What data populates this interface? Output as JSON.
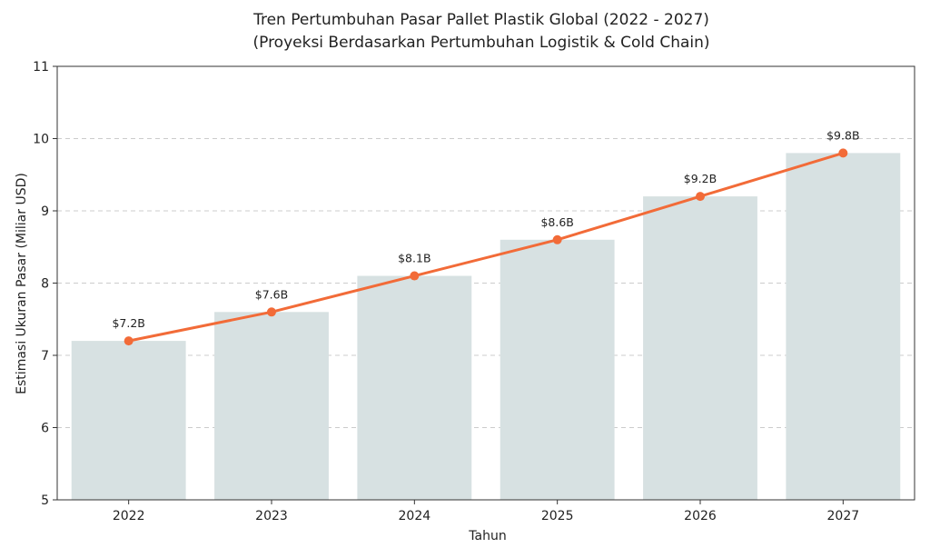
{
  "chart_data": {
    "type": "bar",
    "title": "Tren Pertumbuhan Pasar Pallet Plastik Global (2022 - 2027)",
    "subtitle": "(Proyeksi Berdasarkan Pertumbuhan Logistik & Cold Chain)",
    "xlabel": "Tahun",
    "ylabel": "Estimasi Ukuran Pasar (Miliar USD)",
    "categories": [
      "2022",
      "2023",
      "2024",
      "2025",
      "2026",
      "2027"
    ],
    "values": [
      7.2,
      7.6,
      8.1,
      8.6,
      9.2,
      9.8
    ],
    "data_labels": [
      "$7.2B",
      "$7.6B",
      "$8.1B",
      "$8.6B",
      "$9.2B",
      "$9.8B"
    ],
    "ylim": [
      5,
      11
    ],
    "yticks": [
      5,
      6,
      7,
      8,
      9,
      10,
      11
    ],
    "grid": "horizontal dashed",
    "overlay_line": true,
    "colors": {
      "bar": "#d7e1e2",
      "line": "#f26b38",
      "grid": "#cccccc",
      "axis": "#333333"
    }
  }
}
